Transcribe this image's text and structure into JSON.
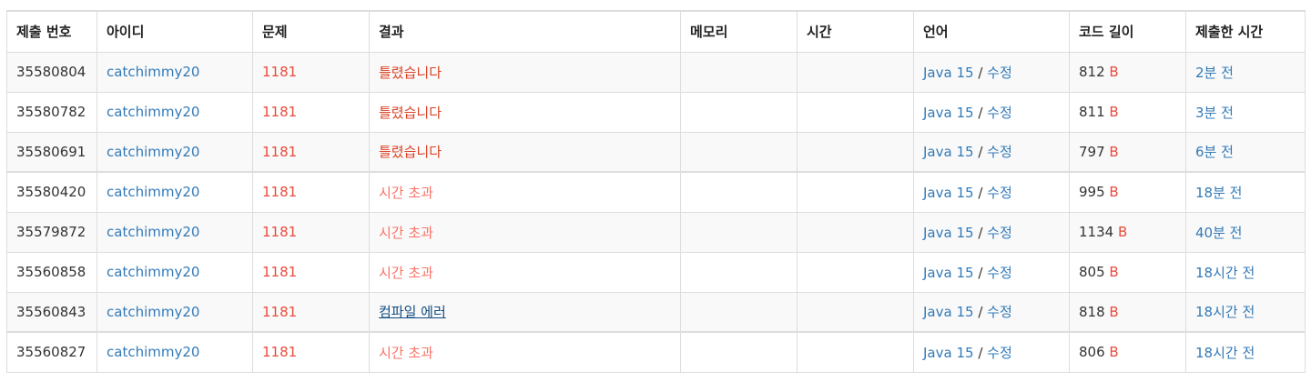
{
  "headers": [
    "제출 번호",
    "아이디",
    "문제",
    "결과",
    "메모리",
    "시간",
    "언어",
    "코드 길이",
    "제출한 시간"
  ],
  "rows": [
    {
      "id": "35580804",
      "user": "catchimmy20",
      "problem": "1181",
      "result": "틀렸습니다",
      "result_type": "wrong",
      "memory": "",
      "time": "",
      "lang": "Java 15",
      "edit": "수정",
      "length": "812",
      "unit": "B",
      "submitted": "2분 전"
    },
    {
      "id": "35580782",
      "user": "catchimmy20",
      "problem": "1181",
      "result": "틀렸습니다",
      "result_type": "wrong",
      "memory": "",
      "time": "",
      "lang": "Java 15",
      "edit": "수정",
      "length": "811",
      "unit": "B",
      "submitted": "3분 전"
    },
    {
      "id": "35580691",
      "user": "catchimmy20",
      "problem": "1181",
      "result": "틀렸습니다",
      "result_type": "wrong",
      "memory": "",
      "time": "",
      "lang": "Java 15",
      "edit": "수정",
      "length": "797",
      "unit": "B",
      "submitted": "6분 전"
    },
    {
      "id": "35580420",
      "user": "catchimmy20",
      "problem": "1181",
      "result": "시간 초과",
      "result_type": "tle",
      "memory": "",
      "time": "",
      "lang": "Java 15",
      "edit": "수정",
      "length": "995",
      "unit": "B",
      "submitted": "18분 전"
    },
    {
      "id": "35579872",
      "user": "catchimmy20",
      "problem": "1181",
      "result": "시간 초과",
      "result_type": "tle",
      "memory": "",
      "time": "",
      "lang": "Java 15",
      "edit": "수정",
      "length": "1134",
      "unit": "B",
      "submitted": "40분 전"
    },
    {
      "id": "35560858",
      "user": "catchimmy20",
      "problem": "1181",
      "result": "시간 초과",
      "result_type": "tle",
      "memory": "",
      "time": "",
      "lang": "Java 15",
      "edit": "수정",
      "length": "805",
      "unit": "B",
      "submitted": "18시간 전"
    },
    {
      "id": "35560843",
      "user": "catchimmy20",
      "problem": "1181",
      "result": "컴파일 에러",
      "result_type": "ce",
      "memory": "",
      "time": "",
      "lang": "Java 15",
      "edit": "수정",
      "length": "818",
      "unit": "B",
      "submitted": "18시간 전"
    },
    {
      "id": "35560827",
      "user": "catchimmy20",
      "problem": "1181",
      "result": "시간 초과",
      "result_type": "tle",
      "memory": "",
      "time": "",
      "lang": "Java 15",
      "edit": "수정",
      "length": "806",
      "unit": "B",
      "submitted": "18시간 전"
    }
  ],
  "colors": {
    "link": "#337ab7",
    "problem": "#e74c3c",
    "wrong": "#dd4124",
    "tle": "#fa7268",
    "compile_error": "#0f4c81",
    "border": "#dddddd",
    "stripe": "#f9f9f9"
  }
}
